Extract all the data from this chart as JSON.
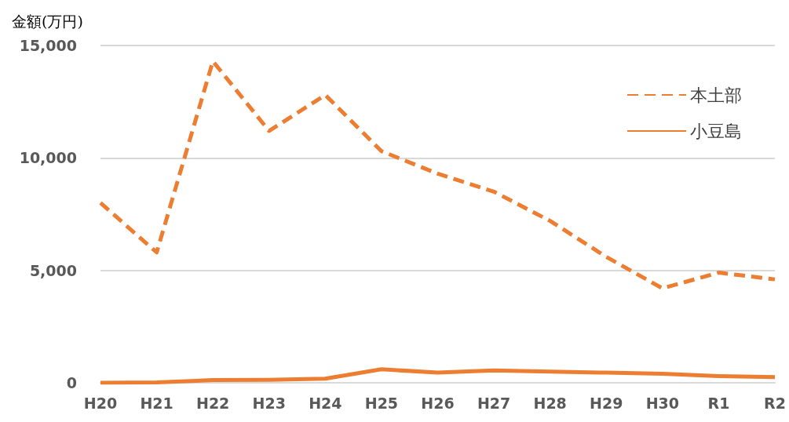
{
  "chart_data": {
    "type": "line",
    "ylabel": "金額(万円)",
    "categories": [
      "H20",
      "H21",
      "H22",
      "H23",
      "H24",
      "H25",
      "H26",
      "H27",
      "H28",
      "H29",
      "H30",
      "R1",
      "R2"
    ],
    "series": [
      {
        "name": "本土部",
        "color": "#ed7d31",
        "line_style": "dashed",
        "values": [
          8000,
          5800,
          14300,
          11200,
          12800,
          10300,
          9300,
          8500,
          7200,
          5600,
          4200,
          4900,
          4600
        ]
      },
      {
        "name": "小豆島",
        "color": "#ed7d31",
        "line_style": "solid",
        "values": [
          0,
          20,
          120,
          130,
          180,
          600,
          450,
          550,
          500,
          450,
          400,
          300,
          250
        ]
      }
    ],
    "ylim": [
      0,
      15000
    ],
    "yticks": [
      0,
      {
        "value": 5000,
        "label": "5,000"
      },
      {
        "value": 10000,
        "label": "10,000"
      },
      {
        "value": 15000,
        "label": "15,000"
      }
    ],
    "grid": "y",
    "legend": "top right",
    "marker": "none"
  }
}
